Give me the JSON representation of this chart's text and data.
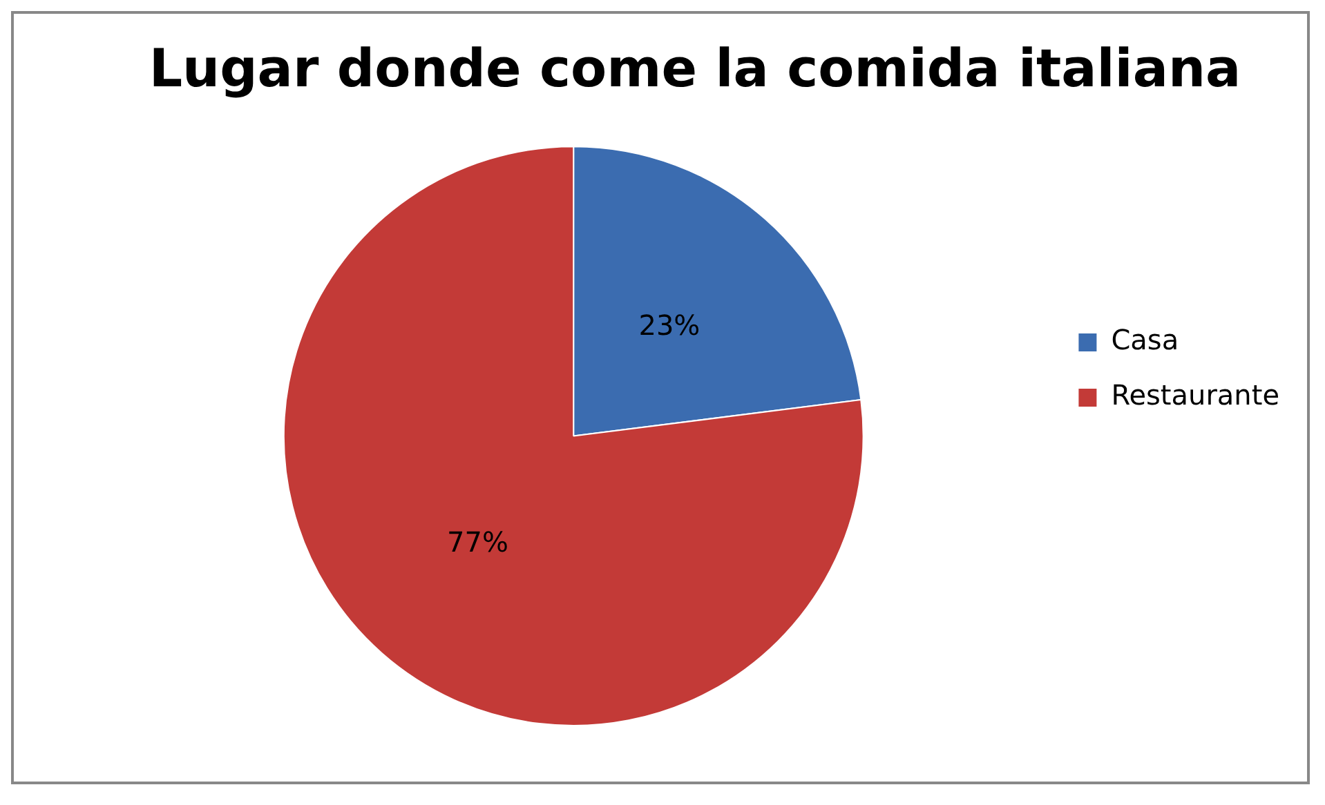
{
  "chart_data": {
    "type": "pie",
    "title": "Lugar donde come la comida italiana",
    "categories": [
      "Casa",
      "Restaurante"
    ],
    "values": [
      23,
      77
    ],
    "colors": [
      "#3b6cb0",
      "#c33a37"
    ],
    "value_labels": [
      "23%",
      "77%"
    ],
    "legend": "right"
  }
}
